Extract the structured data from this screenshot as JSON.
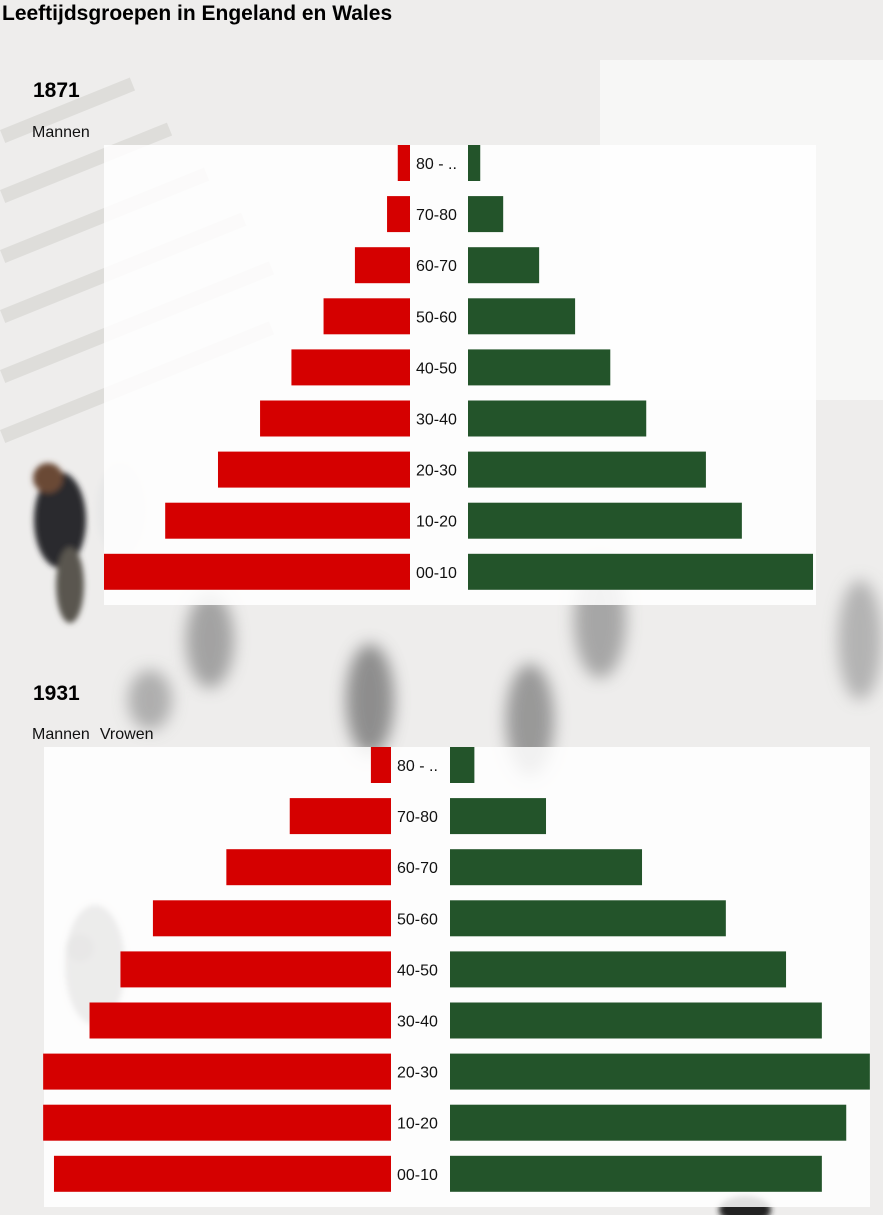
{
  "title": "Leeftijdsgroepen in Engeland en Wales",
  "colors": {
    "men": "#d50000",
    "women": "#23542a"
  },
  "chart_data": [
    {
      "type": "bar",
      "title": "1871",
      "legend": [
        "Mannen"
      ],
      "categories": [
        "80 - ..",
        "70-80",
        "60-70",
        "50-60",
        "40-50",
        "30-40",
        "20-30",
        "10-20",
        "00-10"
      ],
      "series": [
        {
          "name": "Mannen",
          "values": [
            1.6,
            3.0,
            7.2,
            11.3,
            15.5,
            19.6,
            25.1,
            32.0,
            40.0
          ]
        },
        {
          "values": [
            1.6,
            4.6,
            9.3,
            14.0,
            18.6,
            23.3,
            31.1,
            35.8,
            45.1
          ]
        }
      ],
      "xlim": [
        0,
        48
      ],
      "grid": false,
      "orientation": "population-pyramid"
    },
    {
      "type": "bar",
      "title": "1931",
      "legend": [
        "Mannen",
        "Vrowen"
      ],
      "categories": [
        "80 - ..",
        "70-80",
        "60-70",
        "50-60",
        "40-50",
        "30-40",
        "20-30",
        "10-20",
        "00-10"
      ],
      "series": [
        {
          "name": "Mannen",
          "values": [
            2.6,
            13.1,
            21.3,
            30.8,
            35.0,
            39.0,
            45.0,
            45.0,
            43.6
          ]
        },
        {
          "name": "Vrowen",
          "values": [
            3.2,
            12.6,
            25.2,
            36.2,
            44.1,
            48.8,
            55.1,
            52.0,
            48.8
          ]
        }
      ],
      "xlim": [
        0,
        58
      ],
      "grid": false,
      "orientation": "population-pyramid"
    }
  ]
}
